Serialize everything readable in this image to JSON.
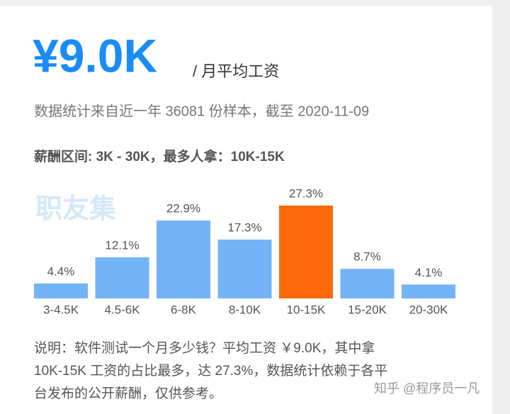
{
  "header": {
    "amount": "¥9.0K",
    "unit": "/ 月平均工资",
    "source": "数据统计来自近一年 36081 份样本，截至 2020-11-09",
    "range": "薪酬区间: 3K - 30K，最多人拿：10K-15K"
  },
  "watermark": "职友集",
  "chart_data": {
    "type": "bar",
    "categories": [
      "3-4.5K",
      "4.5-6K",
      "6-8K",
      "8-10K",
      "10-15K",
      "15-20K",
      "20-30K"
    ],
    "values": [
      4.4,
      12.1,
      22.9,
      17.3,
      27.3,
      8.7,
      4.1
    ],
    "value_labels": [
      "4.4%",
      "12.1%",
      "22.9%",
      "17.3%",
      "27.3%",
      "8.7%",
      "4.1%"
    ],
    "colors": [
      "#74b4f6",
      "#74b4f6",
      "#74b4f6",
      "#74b4f6",
      "#fc6a0c",
      "#74b4f6",
      "#74b4f6"
    ]
  },
  "note": [
    "说明：软件测试一个月多少钱？平均工资 ￥9.0K，其中拿",
    "10K-15K 工资的占比最多，达 27.3%，数据统计依赖于各平",
    "台发布的公开薪酬，仅供参考。"
  ],
  "credit": "知乎 @程序员一凡"
}
